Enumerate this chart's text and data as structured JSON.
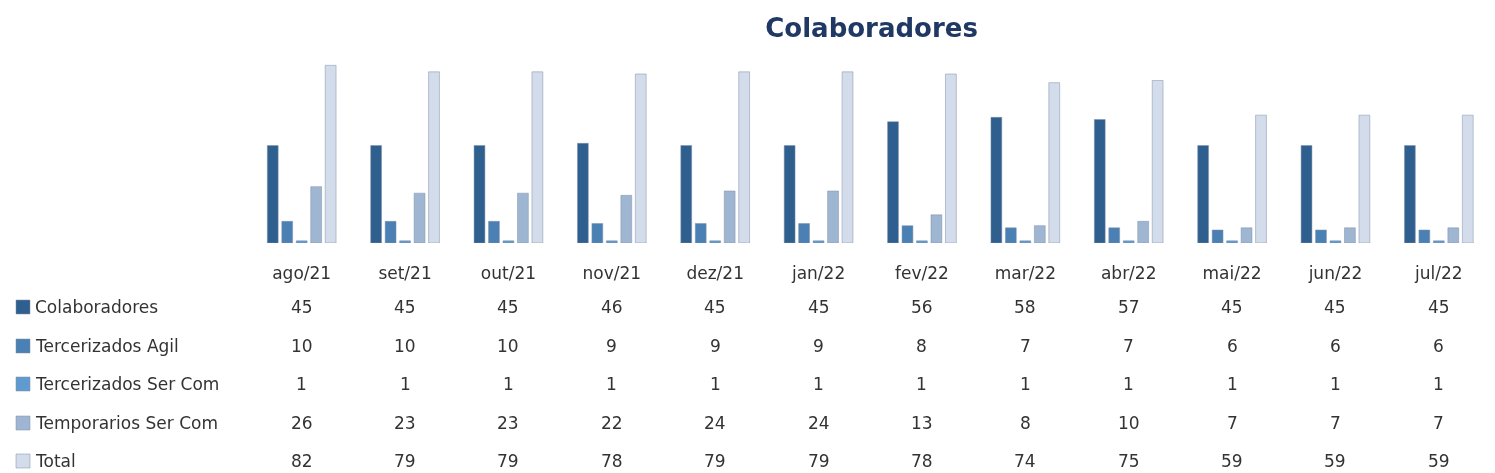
{
  "chart_data": {
    "type": "bar",
    "title": "Colaboradores",
    "categories": [
      "ago/21",
      "set/21",
      "out/21",
      "nov/21",
      "dez/21",
      "jan/22",
      "fev/22",
      "mar/22",
      "abr/22",
      "mai/22",
      "jun/22",
      "jul/22"
    ],
    "series": [
      {
        "name": "Colaboradores",
        "color": "#2f5f8f",
        "values": [
          45,
          45,
          45,
          46,
          45,
          45,
          56,
          58,
          57,
          45,
          45,
          45
        ]
      },
      {
        "name": "Tercerizados Agil",
        "color": "#4a80b4",
        "values": [
          10,
          10,
          10,
          9,
          9,
          9,
          8,
          7,
          7,
          6,
          6,
          6
        ]
      },
      {
        "name": "Tercerizados Ser Com",
        "color": "#5f9bd0",
        "values": [
          1,
          1,
          1,
          1,
          1,
          1,
          1,
          1,
          1,
          1,
          1,
          1
        ]
      },
      {
        "name": "Temporarios Ser Com",
        "color": "#9fb6d3",
        "values": [
          26,
          23,
          23,
          22,
          24,
          24,
          13,
          8,
          10,
          7,
          7,
          7
        ]
      },
      {
        "name": "Total",
        "color": "#d3dceb",
        "values": [
          82,
          79,
          79,
          78,
          79,
          79,
          78,
          74,
          75,
          59,
          59,
          59
        ]
      }
    ],
    "data_labels": true,
    "legend": "bottom left"
  }
}
